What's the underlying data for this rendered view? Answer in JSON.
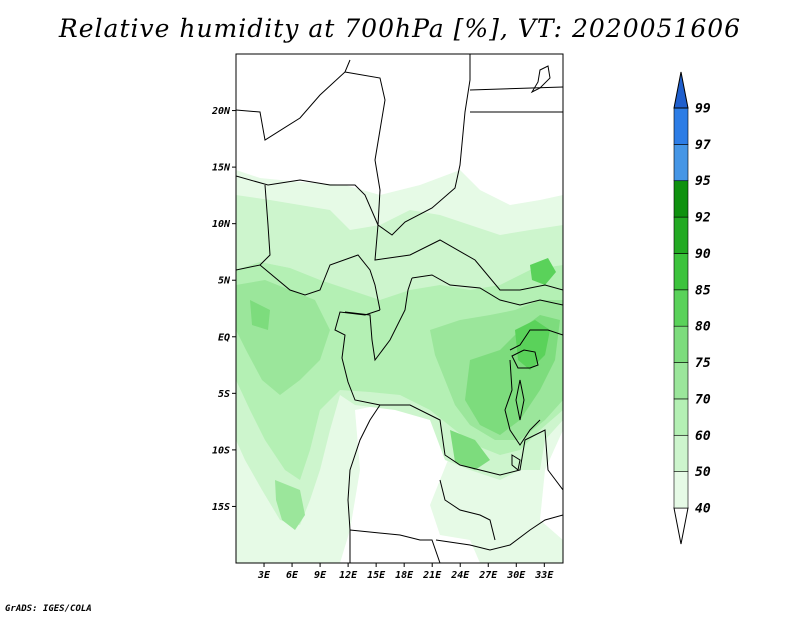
{
  "title": "Relative humidity at 700hPa [%], VT: 2020051606",
  "credit": "GrADS: IGES/COLA",
  "map": {
    "lon_range": [
      0,
      35
    ],
    "lat_range": [
      -20,
      25
    ],
    "lat_ticks": [
      {
        "value": 20,
        "label": "20N"
      },
      {
        "value": 15,
        "label": "15N"
      },
      {
        "value": 10,
        "label": "10N"
      },
      {
        "value": 5,
        "label": "5N"
      },
      {
        "value": 0,
        "label": "EQ"
      },
      {
        "value": -5,
        "label": "5S"
      },
      {
        "value": -10,
        "label": "10S"
      },
      {
        "value": -15,
        "label": "15S"
      }
    ],
    "lon_ticks": [
      {
        "value": 3,
        "label": "3E"
      },
      {
        "value": 6,
        "label": "6E"
      },
      {
        "value": 9,
        "label": "9E"
      },
      {
        "value": 12,
        "label": "12E"
      },
      {
        "value": 15,
        "label": "15E"
      },
      {
        "value": 18,
        "label": "18E"
      },
      {
        "value": 21,
        "label": "21E"
      },
      {
        "value": 24,
        "label": "24E"
      },
      {
        "value": 27,
        "label": "27E"
      },
      {
        "value": 30,
        "label": "30E"
      },
      {
        "value": 33,
        "label": "33E"
      }
    ]
  },
  "colorbar": {
    "levels": [
      "40",
      "50",
      "60",
      "70",
      "75",
      "80",
      "85",
      "90",
      "92",
      "95",
      "97",
      "99"
    ],
    "colors": [
      "#ffffff",
      "#e6fae6",
      "#cdf5cd",
      "#b4f0b4",
      "#9be69b",
      "#7ddc7d",
      "#5ad25a",
      "#3cc33c",
      "#23aa23",
      "#0f910f",
      "#4696e6",
      "#2d7de6",
      "#1f5fcd"
    ]
  }
}
